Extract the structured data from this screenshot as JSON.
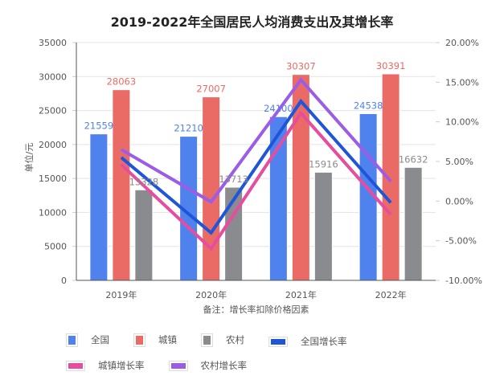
{
  "chart_data": {
    "type": "bar",
    "title": "2019-2022年全国居民人均消费支出及其增长率",
    "xlabel": "备注：增长率扣除价格因素",
    "ylabel": "单位/元",
    "categories": [
      "2019年",
      "2020年",
      "2021年",
      "2022年"
    ],
    "ylim": [
      0,
      35000
    ],
    "yticks": [
      "0",
      "5000",
      "10000",
      "15000",
      "20000",
      "25000",
      "30000",
      "35000"
    ],
    "y2lim": [
      -10,
      20
    ],
    "y2ticks": [
      "-10.00%",
      "-5.00%",
      "0.00%",
      "5.00%",
      "10.00%",
      "15.00%",
      "20.00%"
    ],
    "grid": true,
    "legend_position": "bottom-left",
    "series": [
      {
        "name": "全国",
        "type": "bar",
        "axis": "left",
        "color": "#5082EE",
        "values": [
          21559,
          21210,
          24100,
          24538
        ],
        "labels": [
          "21559",
          "21210",
          "24100",
          "24538"
        ]
      },
      {
        "name": "城镇",
        "type": "bar",
        "axis": "left",
        "color": "#EA6B66",
        "values": [
          28063,
          27007,
          30307,
          30391
        ],
        "labels": [
          "28063",
          "27007",
          "30307",
          "30391"
        ]
      },
      {
        "name": "农村",
        "type": "bar",
        "axis": "left",
        "color": "#898B8E",
        "values": [
          13328,
          13713,
          15916,
          16632
        ],
        "labels": [
          "13328",
          "13713",
          "15916",
          "16632"
        ]
      },
      {
        "name": "全国增长率",
        "type": "line",
        "axis": "right",
        "color": "#1F56D9",
        "values": [
          5.5,
          -4.0,
          12.6,
          -0.2
        ]
      },
      {
        "name": "城镇增长率",
        "type": "line",
        "axis": "right",
        "color": "#E74D9F",
        "values": [
          4.6,
          -6.0,
          11.1,
          -1.7
        ]
      },
      {
        "name": "农村增长率",
        "type": "line",
        "axis": "right",
        "color": "#9B5CE6",
        "values": [
          6.5,
          -0.1,
          15.3,
          2.5
        ]
      }
    ]
  }
}
